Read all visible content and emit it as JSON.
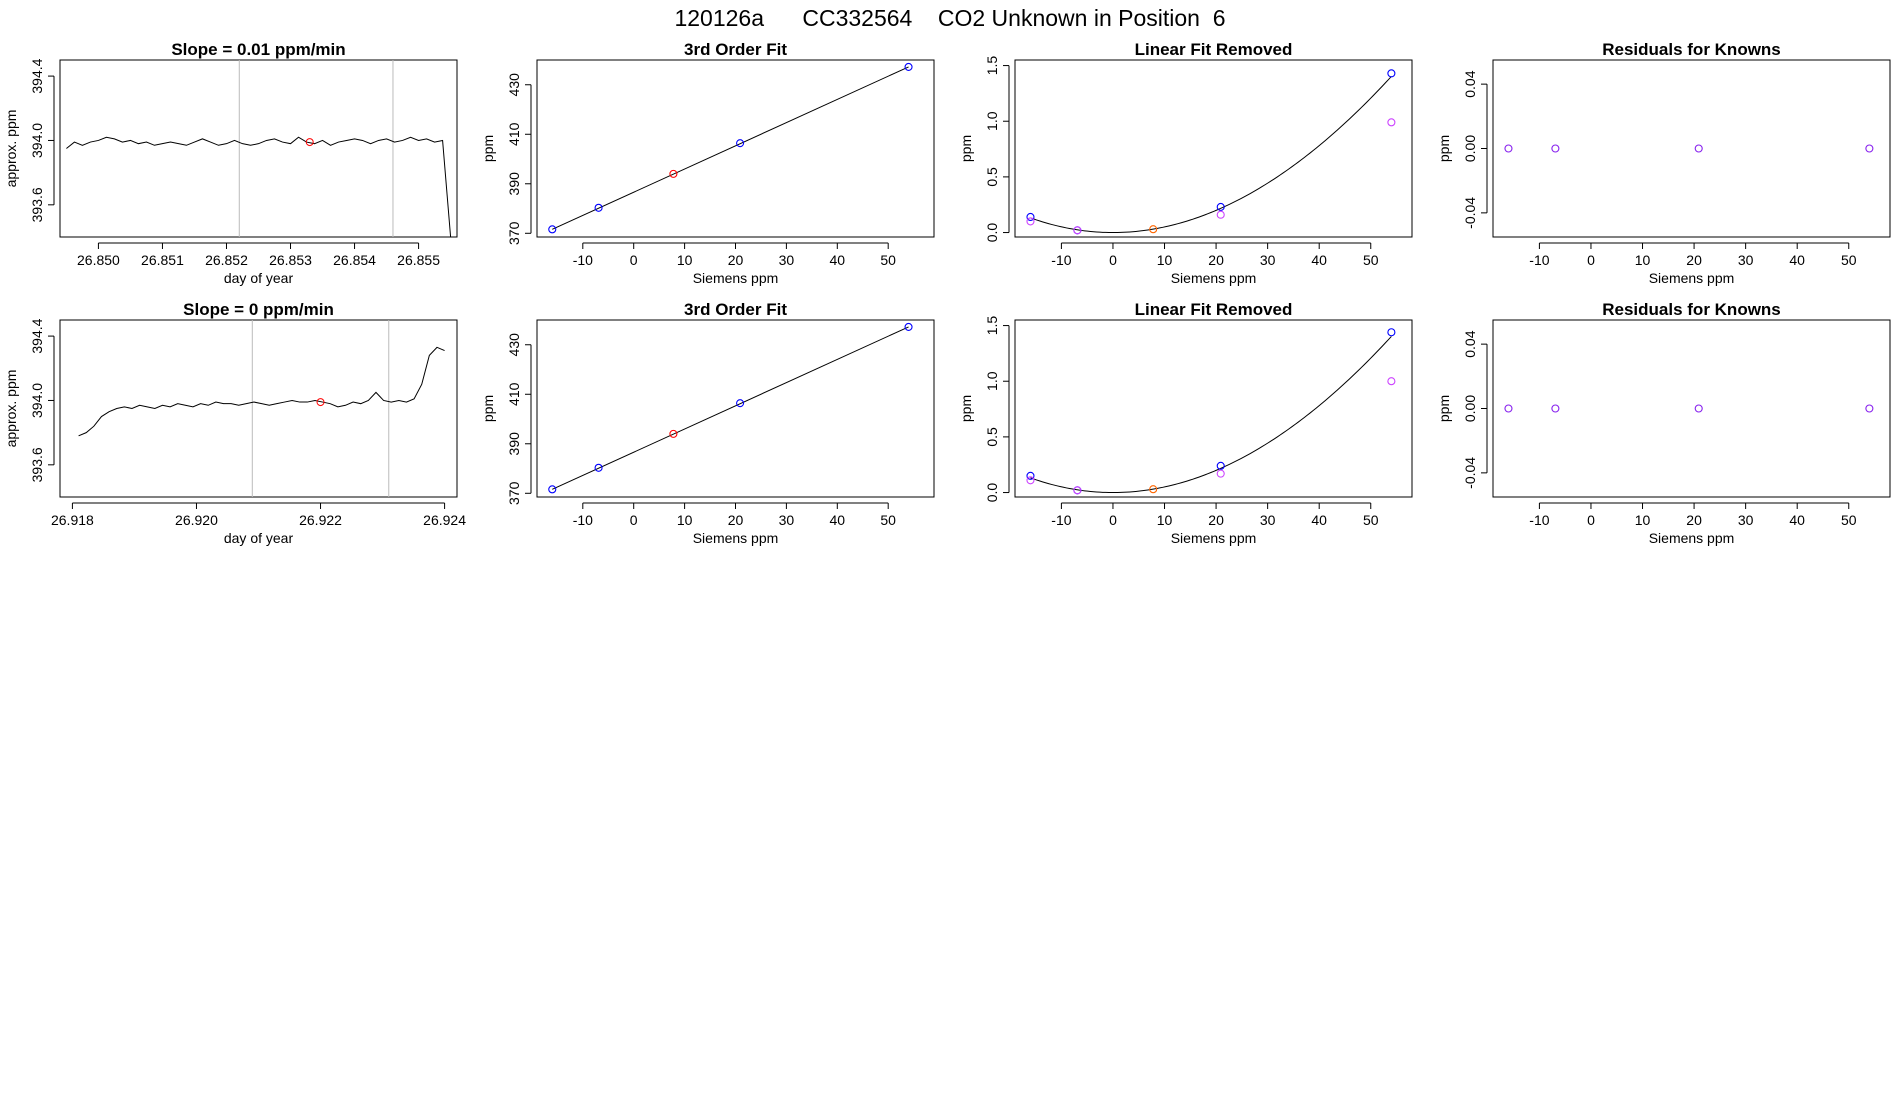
{
  "page_title": "120126a      CC332564    CO2 Unknown in Position  6",
  "chart_data": [
    {
      "type": "line",
      "title": "Slope =  0.01  ppm/min",
      "xlabel": "day of year",
      "ylabel": "approx. ppm",
      "xlim": [
        26.8494,
        26.8556
      ],
      "ylim": [
        393.4,
        394.5
      ],
      "x_ticks": [
        "26.850",
        "26.851",
        "26.852",
        "26.853",
        "26.854",
        "26.855"
      ],
      "y_ticks": [
        "393.6",
        "394.0",
        "394.4"
      ],
      "vlines_x": [
        26.8522,
        26.8546
      ],
      "marker": {
        "x": 26.8533,
        "y": 393.99,
        "color": "#ff0000"
      },
      "line_color": "#000000",
      "series_x_range": [
        26.8495,
        26.8555
      ],
      "series": [
        {
          "values": [
            393.95,
            393.99,
            393.97,
            393.99,
            394.0,
            394.02,
            394.01,
            393.99,
            394.0,
            393.98,
            393.99,
            393.97,
            393.98,
            393.99,
            393.98,
            393.97,
            393.99,
            394.01,
            393.99,
            393.97,
            393.98,
            394.0,
            393.98,
            393.97,
            393.98,
            394.0,
            394.01,
            393.99,
            393.98,
            394.02,
            393.99,
            393.98,
            394.0,
            393.97,
            393.99,
            394.0,
            394.01,
            394.0,
            393.98,
            394.0,
            394.01,
            393.99,
            394.0,
            394.02,
            394.0,
            394.01,
            393.99,
            394.0,
            393.4
          ]
        }
      ]
    },
    {
      "type": "scatter",
      "title": "3rd Order Fit",
      "xlabel": "Siemens ppm",
      "ylabel": "ppm",
      "xlim": [
        -19,
        59
      ],
      "ylim": [
        368.5,
        440
      ],
      "x_ticks": [
        -10,
        0,
        10,
        20,
        30,
        40,
        50
      ],
      "y_ticks": [
        370,
        390,
        410,
        430
      ],
      "fit_line": [
        [
          -16,
          371.6
        ],
        [
          54,
          437.2
        ]
      ],
      "points": [
        {
          "x": -16,
          "y": 371.6,
          "color": "#0000ff"
        },
        {
          "x": -6.9,
          "y": 380.3,
          "color": "#0000ff"
        },
        {
          "x": 7.8,
          "y": 394.0,
          "color": "#ff0000"
        },
        {
          "x": 20.9,
          "y": 406.4,
          "color": "#0000ff"
        },
        {
          "x": 54,
          "y": 437.2,
          "color": "#0000ff"
        }
      ]
    },
    {
      "type": "scatter",
      "title": "Linear Fit Removed",
      "xlabel": "Siemens ppm",
      "ylabel": "ppm",
      "xlim": [
        -19,
        58
      ],
      "ylim": [
        -0.04,
        1.55
      ],
      "x_ticks": [
        -10,
        0,
        10,
        20,
        30,
        40,
        50
      ],
      "y_ticks": [
        "0.0",
        "0.5",
        "1.0",
        "1.5"
      ],
      "curve_coeffs": [
        0,
        0,
        0.000508,
        -5e-07
      ],
      "curve_range": [
        -16,
        54
      ],
      "points": [
        {
          "x": -16,
          "y": 0.14,
          "color": "#0000ff"
        },
        {
          "x": -16,
          "y": 0.1,
          "color": "#cc44ff"
        },
        {
          "x": -6.9,
          "y": 0.02,
          "color": "#0000ff"
        },
        {
          "x": -6.9,
          "y": 0.02,
          "color": "#cc44ff"
        },
        {
          "x": 7.8,
          "y": 0.03,
          "color": "#ff6600"
        },
        {
          "x": 20.9,
          "y": 0.23,
          "color": "#0000ff"
        },
        {
          "x": 20.9,
          "y": 0.16,
          "color": "#cc44ff"
        },
        {
          "x": 54,
          "y": 1.43,
          "color": "#0000ff"
        },
        {
          "x": 54,
          "y": 0.99,
          "color": "#cc44ff"
        }
      ]
    },
    {
      "type": "scatter",
      "title": "Residuals for Knowns",
      "xlabel": "Siemens ppm",
      "ylabel": "ppm",
      "xlim": [
        -19,
        58
      ],
      "ylim": [
        -0.055,
        0.055
      ],
      "x_ticks": [
        -10,
        0,
        10,
        20,
        30,
        40,
        50
      ],
      "y_ticks": [
        "-0.04",
        "0.00",
        "0.04"
      ],
      "points": [
        {
          "x": -16,
          "y": 0,
          "color": "#8822ee"
        },
        {
          "x": -6.9,
          "y": 0,
          "color": "#8822ee"
        },
        {
          "x": 20.9,
          "y": 0,
          "color": "#8822ee"
        },
        {
          "x": 54,
          "y": 0,
          "color": "#8822ee"
        }
      ]
    },
    {
      "type": "line",
      "title": "Slope =  0  ppm/min",
      "xlabel": "day of year",
      "ylabel": "approx. ppm",
      "xlim": [
        26.9178,
        26.9242
      ],
      "ylim": [
        393.4,
        394.5
      ],
      "x_ticks": [
        "26.918",
        "26.920",
        "26.922",
        "26.924"
      ],
      "y_ticks": [
        "393.6",
        "394.0",
        "394.4"
      ],
      "vlines_x": [
        26.9209,
        26.9231
      ],
      "marker": {
        "x": 26.922,
        "y": 393.99,
        "color": "#ff0000"
      },
      "line_color": "#000000",
      "series_x_range": [
        26.9181,
        26.924
      ],
      "series": [
        {
          "values": [
            393.78,
            393.8,
            393.84,
            393.9,
            393.93,
            393.95,
            393.96,
            393.95,
            393.97,
            393.96,
            393.95,
            393.97,
            393.96,
            393.98,
            393.97,
            393.96,
            393.98,
            393.97,
            393.99,
            393.98,
            393.98,
            393.97,
            393.98,
            393.99,
            393.98,
            393.97,
            393.98,
            393.99,
            394.0,
            393.99,
            393.99,
            394.0,
            393.99,
            393.98,
            393.96,
            393.97,
            393.99,
            393.98,
            394.0,
            394.05,
            394.0,
            393.99,
            394.0,
            393.99,
            394.01,
            394.1,
            394.28,
            394.33,
            394.31
          ]
        }
      ]
    },
    {
      "type": "scatter",
      "title": "3rd Order Fit",
      "xlabel": "Siemens ppm",
      "ylabel": "ppm",
      "xlim": [
        -19,
        59
      ],
      "ylim": [
        368.5,
        440
      ],
      "x_ticks": [
        -10,
        0,
        10,
        20,
        30,
        40,
        50
      ],
      "y_ticks": [
        370,
        390,
        410,
        430
      ],
      "fit_line": [
        [
          -16,
          371.6
        ],
        [
          54,
          437.2
        ]
      ],
      "points": [
        {
          "x": -16,
          "y": 371.6,
          "color": "#0000ff"
        },
        {
          "x": -6.9,
          "y": 380.3,
          "color": "#0000ff"
        },
        {
          "x": 7.8,
          "y": 394.0,
          "color": "#ff0000"
        },
        {
          "x": 20.9,
          "y": 406.4,
          "color": "#0000ff"
        },
        {
          "x": 54,
          "y": 437.2,
          "color": "#0000ff"
        }
      ]
    },
    {
      "type": "scatter",
      "title": "Linear Fit Removed",
      "xlabel": "Siemens ppm",
      "ylabel": "ppm",
      "xlim": [
        -19,
        58
      ],
      "ylim": [
        -0.04,
        1.55
      ],
      "x_ticks": [
        -10,
        0,
        10,
        20,
        30,
        40,
        50
      ],
      "y_ticks": [
        "0.0",
        "0.5",
        "1.0",
        "1.5"
      ],
      "curve_coeffs": [
        0,
        0,
        0.000508,
        -5e-07
      ],
      "curve_range": [
        -16,
        54
      ],
      "points": [
        {
          "x": -16,
          "y": 0.15,
          "color": "#0000ff"
        },
        {
          "x": -16,
          "y": 0.11,
          "color": "#cc44ff"
        },
        {
          "x": -6.9,
          "y": 0.02,
          "color": "#0000ff"
        },
        {
          "x": -6.9,
          "y": 0.02,
          "color": "#cc44ff"
        },
        {
          "x": 7.8,
          "y": 0.03,
          "color": "#ff6600"
        },
        {
          "x": 20.9,
          "y": 0.24,
          "color": "#0000ff"
        },
        {
          "x": 20.9,
          "y": 0.17,
          "color": "#cc44ff"
        },
        {
          "x": 54,
          "y": 1.44,
          "color": "#0000ff"
        },
        {
          "x": 54,
          "y": 1.0,
          "color": "#cc44ff"
        }
      ]
    },
    {
      "type": "scatter",
      "title": "Residuals for Knowns",
      "xlabel": "Siemens ppm",
      "ylabel": "ppm",
      "xlim": [
        -19,
        58
      ],
      "ylim": [
        -0.055,
        0.055
      ],
      "x_ticks": [
        -10,
        0,
        10,
        20,
        30,
        40,
        50
      ],
      "y_ticks": [
        "-0.04",
        "0.00",
        "0.04"
      ],
      "points": [
        {
          "x": -16,
          "y": 0,
          "color": "#8822ee"
        },
        {
          "x": -6.9,
          "y": 0,
          "color": "#8822ee"
        },
        {
          "x": 20.9,
          "y": 0,
          "color": "#8822ee"
        },
        {
          "x": 54,
          "y": 0,
          "color": "#8822ee"
        }
      ]
    }
  ]
}
